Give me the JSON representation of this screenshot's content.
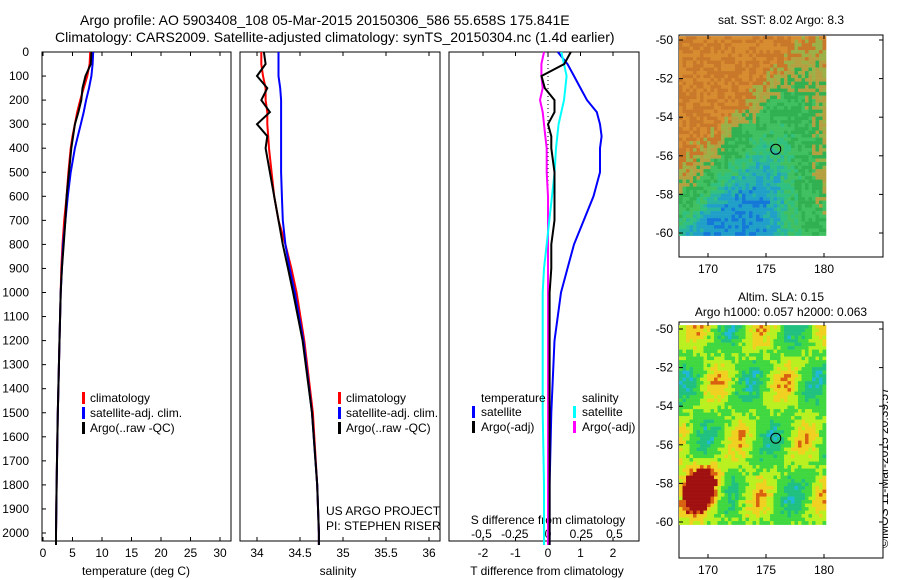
{
  "title_line1": "Argo profile: AO 5903408_108 05-Mar-2015 20150306_586 55.658S 175.841E",
  "title_line2": "Climatology: CARS2009. Satellite-adjusted climatology: synTS_20150304.nc (1.4d earlier)",
  "credit": "©IMOS 11-Mar-2015 20:39:57",
  "colors": {
    "climatology": "#ff0000",
    "satellite": "#0000ff",
    "argo": "#000000",
    "sal_satellite": "#00ffff",
    "sal_argo": "#ff00ff"
  },
  "chart_data": [
    {
      "type": "line",
      "name": "temperature",
      "xlabel": "temperature (deg C)",
      "xlim": [
        -1,
        31
      ],
      "xticks": [
        "0",
        "5",
        "10",
        "15",
        "20",
        "25",
        "30"
      ],
      "ylim": [
        0,
        2050
      ],
      "yticks": [
        "0",
        "100",
        "200",
        "300",
        "400",
        "500",
        "600",
        "700",
        "800",
        "900",
        "1000",
        "1100",
        "1200",
        "1300",
        "1400",
        "1500",
        "1600",
        "1700",
        "1800",
        "1900",
        "2000"
      ],
      "legend": [
        "climatology",
        "satellite-adj. clim.",
        "Argo(..raw -QC)"
      ],
      "depth": [
        0,
        50,
        100,
        150,
        200,
        250,
        300,
        350,
        400,
        500,
        600,
        700,
        800,
        900,
        1000,
        1200,
        1500,
        1800,
        2000,
        2050
      ],
      "series": [
        {
          "name": "climatology",
          "values": [
            8,
            7.9,
            7.5,
            6.9,
            6.3,
            5.8,
            5.4,
            5.0,
            4.7,
            4.3,
            4.0,
            3.6,
            3.3,
            3.1,
            3.0,
            2.8,
            2.5,
            2.3,
            2.2,
            2.2
          ]
        },
        {
          "name": "satellite-adj. clim.",
          "values": [
            8.5,
            8.4,
            8.2,
            7.8,
            7.3,
            6.9,
            6.4,
            5.9,
            5.4,
            4.7,
            4.2,
            3.8,
            3.4,
            3.2,
            3.0,
            2.8,
            2.5,
            2.3,
            2.2,
            2.2
          ]
        },
        {
          "name": "Argo(..raw -QC)",
          "values": [
            8.2,
            8.1,
            7.2,
            6.7,
            6.5,
            6.0,
            5.4,
            5.1,
            4.8,
            4.4,
            4.0,
            3.8,
            3.5,
            3.2,
            3.0,
            2.8,
            2.5,
            2.3,
            2.2,
            2.2
          ]
        }
      ]
    },
    {
      "type": "line",
      "name": "salinity",
      "xlabel": "salinity",
      "xlim": [
        33.8,
        36.1
      ],
      "xticks": [
        "34",
        "34.5",
        "35",
        "35.5",
        "36"
      ],
      "ylim": [
        0,
        2050
      ],
      "legend": [
        "climatology",
        "satellite-adj. clim.",
        "Argo(..raw -QC)"
      ],
      "annotation": [
        "US ARGO PROJECT",
        "PI: STEPHEN RISER"
      ],
      "depth": [
        0,
        50,
        100,
        150,
        200,
        250,
        300,
        350,
        400,
        500,
        600,
        700,
        800,
        900,
        1000,
        1200,
        1500,
        1800,
        2000,
        2050
      ],
      "series": [
        {
          "name": "climatology",
          "values": [
            34.05,
            34.05,
            34.07,
            34.1,
            34.1,
            34.12,
            34.12,
            34.13,
            34.14,
            34.17,
            34.2,
            34.25,
            34.33,
            34.4,
            34.46,
            34.55,
            34.65,
            34.7,
            34.72,
            34.72
          ]
        },
        {
          "name": "satellite-adj. clim.",
          "values": [
            34.25,
            34.25,
            34.25,
            34.27,
            34.28,
            34.28,
            34.28,
            34.28,
            34.28,
            34.28,
            34.29,
            34.3,
            34.33,
            34.38,
            34.44,
            34.54,
            34.64,
            34.7,
            34.72,
            34.72
          ]
        },
        {
          "name": "Argo(..raw -QC)",
          "values": [
            34.08,
            34.1,
            34.0,
            34.12,
            34.05,
            34.15,
            34.0,
            34.12,
            34.1,
            34.15,
            34.2,
            34.25,
            34.3,
            34.36,
            34.42,
            34.53,
            34.64,
            34.7,
            34.72,
            34.72
          ]
        }
      ]
    },
    {
      "type": "line",
      "name": "difference",
      "xlabel": "T difference from climatology",
      "xlim": [
        -2.9,
        2.8
      ],
      "xticks": [
        "-2",
        "-1",
        "0",
        "1",
        "2"
      ],
      "x2label": "S difference from climatology",
      "x2ticks": [
        "-0.5",
        "-0.25",
        "0",
        "0.25",
        "0.5"
      ],
      "ylim": [
        0,
        2050
      ],
      "legend_titles": [
        "temperature",
        "salinity"
      ],
      "legend": [
        "satellite",
        "Argo(-adj)",
        "satellite",
        "Argo(-adj)"
      ],
      "depth": [
        0,
        50,
        100,
        150,
        200,
        250,
        300,
        350,
        400,
        500,
        600,
        700,
        800,
        900,
        1000,
        1200,
        1500,
        1800,
        2000,
        2050
      ],
      "series": [
        {
          "name": "T satellite",
          "units": "degC",
          "values": [
            0.3,
            0.6,
            0.8,
            1.0,
            1.2,
            1.5,
            1.6,
            1.65,
            1.6,
            1.6,
            1.4,
            1.1,
            0.8,
            0.6,
            0.4,
            0.2,
            0.1,
            0.05,
            0.05,
            0.05
          ]
        },
        {
          "name": "T Argo(-adj)",
          "units": "degC",
          "values": [
            0.7,
            0.5,
            -0.2,
            -0.1,
            0.2,
            0.2,
            0.0,
            0.1,
            0.1,
            0.2,
            0.2,
            0.2,
            0.1,
            0.1,
            0.05,
            0.05,
            0.05,
            0.05,
            0.05,
            0.05
          ]
        },
        {
          "name": "S satellite",
          "units": "psu",
          "values": [
            0.1,
            0.12,
            0.14,
            0.13,
            0.12,
            0.1,
            0.08,
            0.07,
            0.06,
            0.05,
            0.03,
            0.01,
            -0.01,
            -0.03,
            -0.04,
            -0.04,
            -0.04,
            -0.03,
            -0.03,
            -0.03
          ]
        },
        {
          "name": "S Argo(-adj)",
          "units": "psu",
          "values": [
            -0.03,
            -0.05,
            -0.05,
            -0.04,
            -0.06,
            -0.04,
            -0.03,
            -0.02,
            -0.01,
            -0.01,
            0,
            0,
            0,
            0,
            0,
            0,
            0,
            0,
            0,
            0
          ]
        }
      ]
    },
    {
      "type": "heatmap",
      "name": "sst-map",
      "title": "sat. SST: 8.02  Argo: 8.3",
      "xticks": [
        "170",
        "175",
        "180"
      ],
      "yticks": [
        "-50",
        "-52",
        "-54",
        "-56",
        "-58",
        "-60"
      ],
      "argo_position": [
        175.841,
        -55.658
      ]
    },
    {
      "type": "heatmap",
      "name": "sla-map",
      "title": "Altim. SLA: 0.15",
      "subtitle": "Argo h1000: 0.057 h2000: 0.063",
      "xticks": [
        "170",
        "175",
        "180"
      ],
      "yticks": [
        "-50",
        "-52",
        "-54",
        "-56",
        "-58",
        "-60"
      ],
      "argo_position": [
        175.841,
        -55.658
      ]
    }
  ]
}
